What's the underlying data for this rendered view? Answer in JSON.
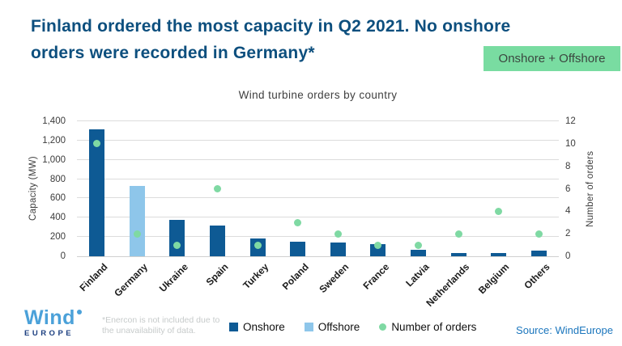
{
  "header": {
    "title": "Finland ordered the most capacity in Q2 2021. No onshore orders were recorded in Germany*",
    "badge": "Onshore + Offshore"
  },
  "chart_data": {
    "type": "bar",
    "title": "Wind turbine orders by country",
    "categories": [
      "Finland",
      "Germany",
      "Ukraine",
      "Spain",
      "Turkey",
      "Poland",
      "Sweden",
      "France",
      "Latvia",
      "Netherlands",
      "Belgium",
      "Others"
    ],
    "series": [
      {
        "name": "Onshore",
        "type": "bar",
        "axis": "left",
        "color": "#0e5a94",
        "values": [
          1320,
          0,
          375,
          315,
          185,
          150,
          145,
          130,
          65,
          35,
          35,
          55
        ]
      },
      {
        "name": "Offshore",
        "type": "bar",
        "axis": "left",
        "color": "#8ec6ea",
        "values": [
          0,
          730,
          0,
          0,
          0,
          0,
          0,
          0,
          0,
          0,
          0,
          0
        ]
      },
      {
        "name": "Number of orders",
        "type": "scatter",
        "axis": "right",
        "color": "#7fd9a3",
        "values": [
          10,
          2,
          1,
          6,
          1,
          3,
          2,
          1,
          1,
          2,
          4,
          2
        ]
      }
    ],
    "left_axis": {
      "label": "Capacity (MW)",
      "min": 0,
      "max": 1400,
      "step": 200
    },
    "right_axis": {
      "label": "Number of orders",
      "min": 0,
      "max": 12,
      "step": 2
    },
    "grid": true,
    "legend_position": "bottom"
  },
  "footer": {
    "logo_text": "Wind",
    "logo_sub": "EUROPE",
    "footnote": "*Enercon is not included due to the unavailability of data.",
    "legend": [
      {
        "label": "Onshore",
        "color": "#0e5a94",
        "shape": "square"
      },
      {
        "label": "Offshore",
        "color": "#8ec6ea",
        "shape": "square"
      },
      {
        "label": "Number of orders",
        "color": "#7fd9a3",
        "shape": "circle"
      }
    ],
    "source": "Source: WindEurope"
  }
}
